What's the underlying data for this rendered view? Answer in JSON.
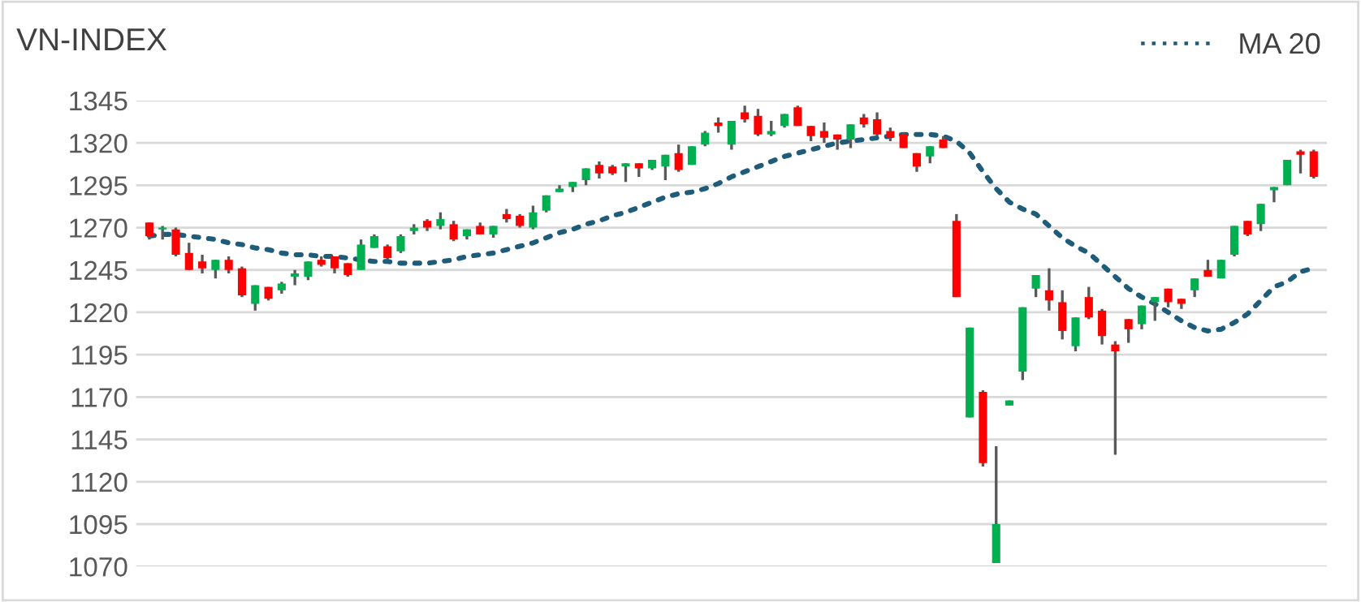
{
  "chart_data": {
    "type": "candlestick",
    "title": "VN-INDEX",
    "categories": [
      null,
      null,
      null,
      null,
      null,
      null,
      null,
      null,
      null,
      null,
      null,
      null,
      null,
      null,
      null,
      null,
      null,
      null,
      null,
      null,
      null,
      null,
      null,
      null,
      null,
      null,
      null,
      null,
      null,
      null,
      null,
      null,
      null,
      null,
      null,
      null,
      null,
      null,
      null,
      null,
      null,
      null,
      null,
      null,
      null,
      null,
      null,
      null,
      null,
      null,
      null,
      null,
      null,
      null,
      null,
      null,
      null,
      null,
      null,
      null,
      null,
      null,
      null,
      null,
      null,
      null,
      null,
      null,
      null,
      null,
      null,
      null,
      null,
      null,
      null,
      null,
      null,
      null,
      null,
      null,
      null,
      null,
      null,
      null,
      null,
      null,
      null,
      null,
      null
    ],
    "ohlc": [
      [
        1273,
        1273,
        1263,
        1265
      ],
      [
        1269,
        1271,
        1263,
        1270
      ],
      [
        1269,
        1270,
        1253,
        1254
      ],
      [
        1255,
        1261,
        1245,
        1245
      ],
      [
        1250,
        1254,
        1243,
        1246
      ],
      [
        1245,
        1251,
        1240,
        1251
      ],
      [
        1251,
        1253,
        1243,
        1245
      ],
      [
        1246,
        1247,
        1229,
        1230
      ],
      [
        1225,
        1236,
        1221,
        1236
      ],
      [
        1235,
        1235,
        1227,
        1228
      ],
      [
        1233,
        1238,
        1231,
        1237
      ],
      [
        1241,
        1245,
        1236,
        1243
      ],
      [
        1241,
        1250,
        1239,
        1250
      ],
      [
        1251,
        1253,
        1247,
        1248
      ],
      [
        1253,
        1253,
        1243,
        1246
      ],
      [
        1249,
        1249,
        1241,
        1242
      ],
      [
        1245,
        1263,
        1245,
        1260
      ],
      [
        1258,
        1266,
        1258,
        1265
      ],
      [
        1259,
        1260,
        1251,
        1252
      ],
      [
        1256,
        1266,
        1255,
        1265
      ],
      [
        1268,
        1272,
        1266,
        1270
      ],
      [
        1274,
        1275,
        1268,
        1270
      ],
      [
        1271,
        1279,
        1269,
        1275
      ],
      [
        1272,
        1274,
        1262,
        1263
      ],
      [
        1265,
        1269,
        1263,
        1269
      ],
      [
        1271,
        1273,
        1266,
        1266
      ],
      [
        1266,
        1271,
        1264,
        1271
      ],
      [
        1278,
        1281,
        1273,
        1275
      ],
      [
        1277,
        1278,
        1270,
        1271
      ],
      [
        1270,
        1283,
        1269,
        1279
      ],
      [
        1280,
        1289,
        1279,
        1289
      ],
      [
        1291,
        1295,
        1291,
        1293
      ],
      [
        1294,
        1297,
        1291,
        1297
      ],
      [
        1298,
        1305,
        1295,
        1305
      ],
      [
        1307,
        1309,
        1299,
        1302
      ],
      [
        1306,
        1307,
        1301,
        1302
      ],
      [
        1306,
        1308,
        1297,
        1308
      ],
      [
        1308,
        1308,
        1300,
        1305
      ],
      [
        1305,
        1310,
        1304,
        1310
      ],
      [
        1306,
        1313,
        1298,
        1313
      ],
      [
        1314,
        1319,
        1303,
        1304
      ],
      [
        1307,
        1318,
        1307,
        1318
      ],
      [
        1319,
        1327,
        1318,
        1326
      ],
      [
        1332,
        1335,
        1326,
        1330
      ],
      [
        1319,
        1333,
        1316,
        1333
      ],
      [
        1338,
        1342,
        1332,
        1334
      ],
      [
        1336,
        1340,
        1324,
        1325
      ],
      [
        1325,
        1333,
        1324,
        1327
      ],
      [
        1330,
        1337,
        1329,
        1337
      ],
      [
        1341,
        1342,
        1330,
        1330
      ],
      [
        1330,
        1330,
        1321,
        1324
      ],
      [
        1327,
        1332,
        1320,
        1323
      ],
      [
        1325,
        1325,
        1316,
        1322
      ],
      [
        1322,
        1331,
        1317,
        1331
      ],
      [
        1335,
        1337,
        1329,
        1331
      ],
      [
        1334,
        1338,
        1324,
        1325
      ],
      [
        1327,
        1329,
        1321,
        1323
      ],
      [
        1325,
        1326,
        1317,
        1317
      ],
      [
        1314,
        1314,
        1303,
        1306
      ],
      [
        1312,
        1318,
        1308,
        1318
      ],
      [
        1322,
        1324,
        1317,
        1317
      ],
      [
        1274,
        1278,
        1229,
        1229
      ],
      [
        1158,
        1211,
        1158,
        1211
      ],
      [
        1173,
        1174,
        1129,
        1131
      ],
      [
        1072,
        1141,
        1072,
        1095
      ],
      [
        1165,
        1168,
        1165,
        1168
      ],
      [
        1185,
        1223,
        1180,
        1223
      ],
      [
        1234,
        1242,
        1229,
        1242
      ],
      [
        1233,
        1246,
        1221,
        1227
      ],
      [
        1226,
        1233,
        1204,
        1209
      ],
      [
        1200,
        1217,
        1197,
        1217
      ],
      [
        1229,
        1235,
        1216,
        1217
      ],
      [
        1221,
        1222,
        1201,
        1206
      ],
      [
        1201,
        1203,
        1136,
        1197
      ],
      [
        1216,
        1216,
        1202,
        1210
      ],
      [
        1213,
        1224,
        1210,
        1224
      ],
      [
        1226,
        1229,
        1215,
        1229
      ],
      [
        1234,
        1234,
        1223,
        1226
      ],
      [
        1228,
        1228,
        1222,
        1225
      ],
      [
        1233,
        1240,
        1229,
        1240
      ],
      [
        1245,
        1251,
        1241,
        1241
      ],
      [
        1240,
        1251,
        1240,
        1251
      ],
      [
        1254,
        1271,
        1253,
        1271
      ],
      [
        1274,
        1274,
        1265,
        1266
      ],
      [
        1272,
        1284,
        1268,
        1284
      ],
      [
        1292,
        1294,
        1285,
        1294
      ],
      [
        1295,
        1310,
        1295,
        1310
      ],
      [
        1315,
        1316,
        1302,
        1313
      ],
      [
        1315,
        1316,
        1299,
        1300
      ]
    ],
    "series": [
      {
        "name": "MA 20",
        "type": "line",
        "color": "#1f5c7a",
        "values": [
          1265,
          1266,
          1266,
          1265,
          1264,
          1263,
          1261,
          1260,
          1258,
          1257,
          1255,
          1254,
          1254,
          1253,
          1253,
          1252,
          1251,
          1250,
          1250,
          1249,
          1249,
          1249,
          1250,
          1251,
          1253,
          1254,
          1255,
          1257,
          1259,
          1261,
          1264,
          1267,
          1269,
          1272,
          1274,
          1277,
          1279,
          1282,
          1285,
          1288,
          1290,
          1291,
          1293,
          1296,
          1300,
          1303,
          1306,
          1309,
          1312,
          1314,
          1316,
          1318,
          1320,
          1321,
          1322,
          1323,
          1324,
          1325,
          1325,
          1325,
          1324,
          1321,
          1314,
          1303,
          1293,
          1285,
          1281,
          1278,
          1271,
          1264,
          1259,
          1255,
          1248,
          1241,
          1234,
          1229,
          1225,
          1220,
          1215,
          1211,
          1209,
          1210,
          1214,
          1219,
          1227,
          1235,
          1238,
          1244,
          1246
        ]
      }
    ],
    "ylim": [
      1070,
      1345
    ],
    "yticks": [
      1070,
      1095,
      1120,
      1145,
      1170,
      1195,
      1220,
      1245,
      1270,
      1295,
      1320,
      1345
    ],
    "grid": "y",
    "legend": "top right",
    "line_style": "dotted",
    "tick_labels": "y"
  }
}
